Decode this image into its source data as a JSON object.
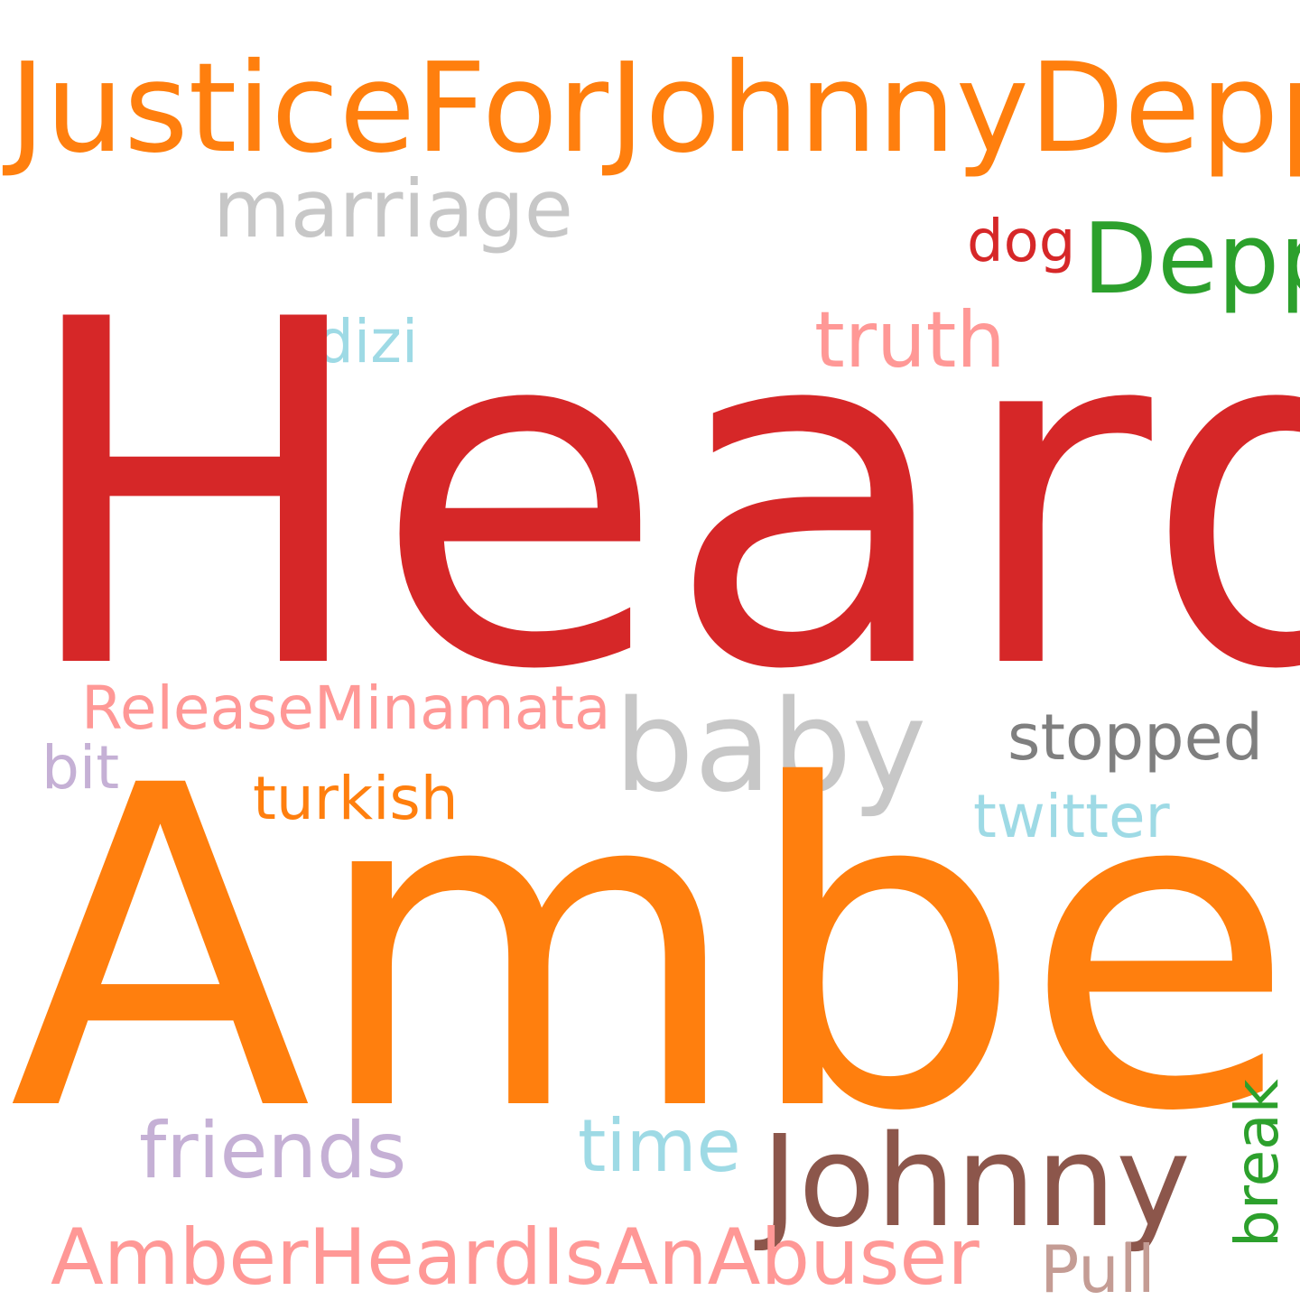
{
  "words": [
    {
      "id": "justice",
      "text": "JusticeForJohnnyDepp",
      "color": "#ff7f0e"
    },
    {
      "id": "marriage",
      "text": "marriage",
      "color": "#c7c7c7"
    },
    {
      "id": "dog",
      "text": "dog",
      "color": "#d62728"
    },
    {
      "id": "depp",
      "text": "Depp",
      "color": "#2ca02c"
    },
    {
      "id": "dizi",
      "text": "dizi",
      "color": "#9edae5"
    },
    {
      "id": "truth",
      "text": "truth",
      "color": "#ff9896"
    },
    {
      "id": "heard",
      "text": "Heard",
      "color": "#d62728"
    },
    {
      "id": "release",
      "text": "ReleaseMinamata",
      "color": "#ff9896"
    },
    {
      "id": "baby",
      "text": "baby",
      "color": "#c7c7c7"
    },
    {
      "id": "stopped",
      "text": "stopped",
      "color": "#7f7f7f"
    },
    {
      "id": "bit",
      "text": "bit",
      "color": "#c5b0d5"
    },
    {
      "id": "turkish",
      "text": "turkish",
      "color": "#ff7f0e"
    },
    {
      "id": "twitter",
      "text": "twitter",
      "color": "#9edae5"
    },
    {
      "id": "amber",
      "text": "Amber",
      "color": "#ff7f0e"
    },
    {
      "id": "friends",
      "text": "friends",
      "color": "#c5b0d5"
    },
    {
      "id": "time",
      "text": "time",
      "color": "#9edae5"
    },
    {
      "id": "johnny",
      "text": "Johnny",
      "color": "#8c564b"
    },
    {
      "id": "abuser",
      "text": "AmberHeardIsAnAbuser",
      "color": "#ff9896"
    },
    {
      "id": "pull",
      "text": "Pull",
      "color": "#c49c94"
    },
    {
      "id": "break",
      "text": "break",
      "color": "#2ca02c",
      "orientation": "vertical"
    }
  ]
}
